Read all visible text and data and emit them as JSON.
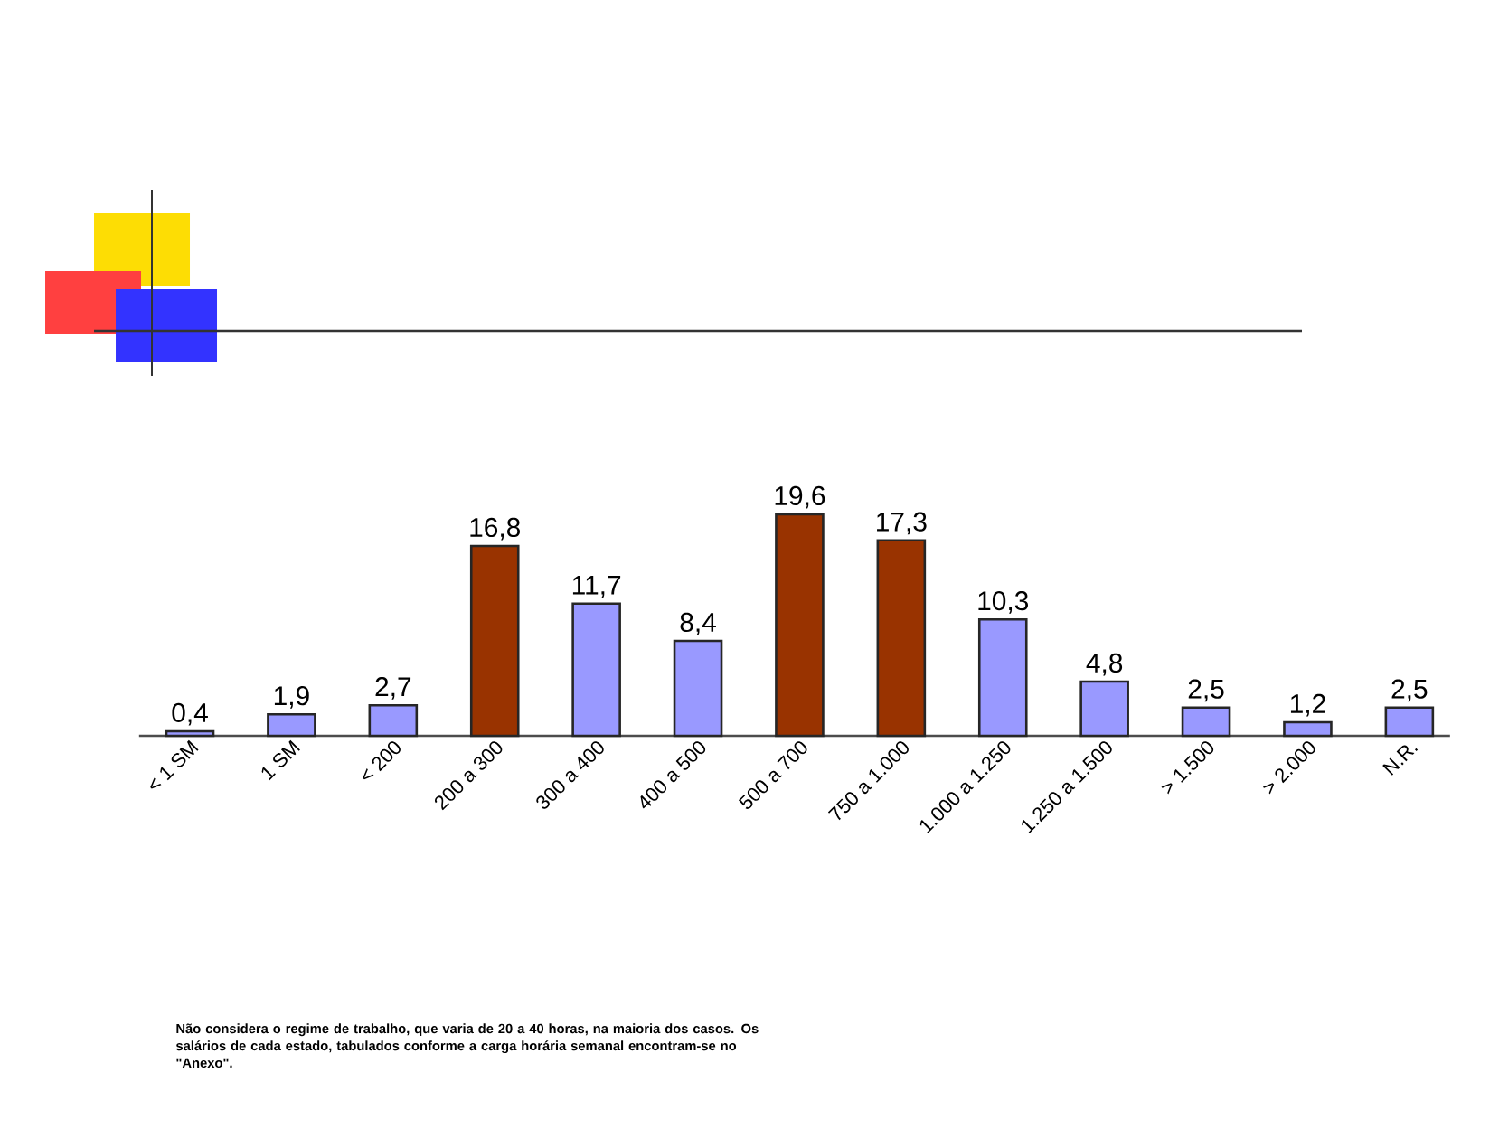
{
  "chart_data": {
    "type": "bar",
    "categories": [
      "< 1 SM",
      "1 SM",
      "< 200",
      "200 a 300",
      "300 a 400",
      "400 a 500",
      "500 a 700",
      "750 a 1.000",
      "1.000 a 1.250",
      "1.250 a 1.500",
      "> 1.500",
      "> 2.000",
      "N.R."
    ],
    "values": [
      0.4,
      1.9,
      2.7,
      16.8,
      11.7,
      8.4,
      19.6,
      17.3,
      10.3,
      4.8,
      2.5,
      1.2,
      2.5
    ],
    "colors": [
      "#9999ff",
      "#9999ff",
      "#9999ff",
      "#993300",
      "#9999ff",
      "#9999ff",
      "#993300",
      "#993300",
      "#9999ff",
      "#9999ff",
      "#9999ff",
      "#9999ff",
      "#9999ff"
    ],
    "value_labels": [
      "0,4",
      "1,9",
      "2,7",
      "16,8",
      "11,7",
      "8,4",
      "19,6",
      "17,3",
      "10,3",
      "4,8",
      "2,5",
      "1,2",
      "2,5"
    ],
    "annotations": [
      "Não considera o regime de trabalho, que varia de 20 a 40 horas, na maioria dos casos. Os salários de cada estado, tabulados conforme a carga horária semanal encontram-se no \"Anexo\"."
    ]
  }
}
